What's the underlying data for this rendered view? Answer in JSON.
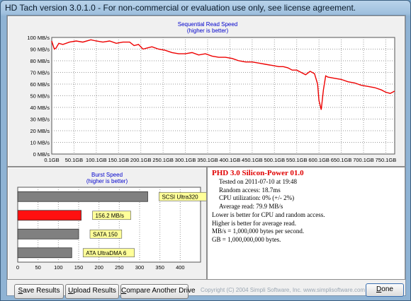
{
  "window": {
    "title": "HD Tach version 3.0.1.0  - For non-commercial or evaluation use only, see license agreement."
  },
  "read_chart": {
    "title": "Sequential Read Speed",
    "subtitle": "(higher is better)"
  },
  "burst_chart": {
    "title": "Burst Speed",
    "subtitle": "(higher is better)"
  },
  "chart_data": [
    {
      "type": "line",
      "title": "Sequential Read Speed",
      "subtitle": "(higher is better)",
      "ylim": [
        0,
        100
      ],
      "xlim": [
        0.1,
        770
      ],
      "y_ticks": [
        "0 MB/s",
        "10 MB/s",
        "20 MB/s",
        "30 MB/s",
        "40 MB/s",
        "50 MB/s",
        "60 MB/s",
        "70 MB/s",
        "80 MB/s",
        "90 MB/s",
        "100 MB/s"
      ],
      "x_ticks": [
        "0.1GB",
        "50.1GB",
        "100.1GB",
        "150.1GB",
        "200.1GB",
        "250.1GB",
        "300.1GB",
        "350.1GB",
        "400.1GB",
        "450.1GB",
        "500.1GB",
        "550.1GB",
        "600.1GB",
        "650.1GB",
        "700.1GB",
        "750.1GB"
      ],
      "grid": true,
      "line_color": "#ee0000",
      "x": [
        0,
        6,
        10,
        16,
        25,
        40,
        55,
        70,
        88,
        100,
        115,
        130,
        145,
        160,
        175,
        185,
        195,
        205,
        215,
        225,
        240,
        255,
        270,
        285,
        300,
        315,
        330,
        345,
        360,
        375,
        390,
        405,
        420,
        435,
        450,
        465,
        480,
        495,
        510,
        520,
        530,
        540,
        550,
        560,
        570,
        580,
        590,
        597,
        600,
        605,
        610,
        615,
        620,
        635,
        650,
        665,
        680,
        695,
        710,
        725,
        740,
        750,
        760,
        770
      ],
      "y": [
        97,
        90,
        91,
        95,
        94,
        96,
        97,
        96,
        98,
        97,
        96,
        97,
        95,
        96,
        96,
        93,
        94,
        90,
        91,
        92,
        90,
        89,
        87,
        86,
        86,
        87,
        85,
        86,
        84,
        83,
        83,
        82,
        80,
        79,
        79,
        78,
        77,
        76,
        75,
        75,
        74,
        72,
        72,
        70,
        68,
        71,
        69,
        60,
        46,
        38,
        55,
        67,
        66,
        65,
        64,
        62,
        61,
        59,
        58,
        57,
        55,
        53,
        52,
        54
      ]
    },
    {
      "type": "bar",
      "title": "Burst Speed",
      "subtitle": "(higher is better)",
      "xlim": [
        0,
        450
      ],
      "x_ticks": [
        0,
        50,
        100,
        150,
        200,
        250,
        300,
        350,
        400
      ],
      "categories": [
        "SCSI Ultra320",
        "156.2 MB/s",
        "SATA 150",
        "ATA UltraDMA 6"
      ],
      "values": [
        320,
        156.2,
        150,
        133
      ],
      "colors": [
        "#808080",
        "#ff1010",
        "#808080",
        "#808080"
      ]
    }
  ],
  "info": {
    "drive_name": "PHD 3.0 Silicon-Power 01.0",
    "tested_on": "Tested on 2011-07-10 at 19:48",
    "random_access": "Random access: 18.7ms",
    "cpu_utilization": "CPU utilization: 0% (+/- 2%)",
    "average_read": "Average read: 79.9 MB/s",
    "note1": "Lower is better for CPU and random access.",
    "note2": "Higher is better for average read.",
    "note3": "MB/s = 1,000,000 bytes per second.",
    "note4": "GB = 1,000,000,000 bytes."
  },
  "buttons": {
    "save_prefix": "S",
    "save_rest": "ave Results",
    "upload_prefix": "U",
    "upload_rest": "pload Results",
    "compare_prefix": "C",
    "compare_rest": "ompare Another Drive",
    "done_prefix": "D",
    "done_rest": "one"
  },
  "footer": {
    "copyright": "Copyright (C) 2004 Simpli Software, Inc. www.simplisoftware.com"
  }
}
